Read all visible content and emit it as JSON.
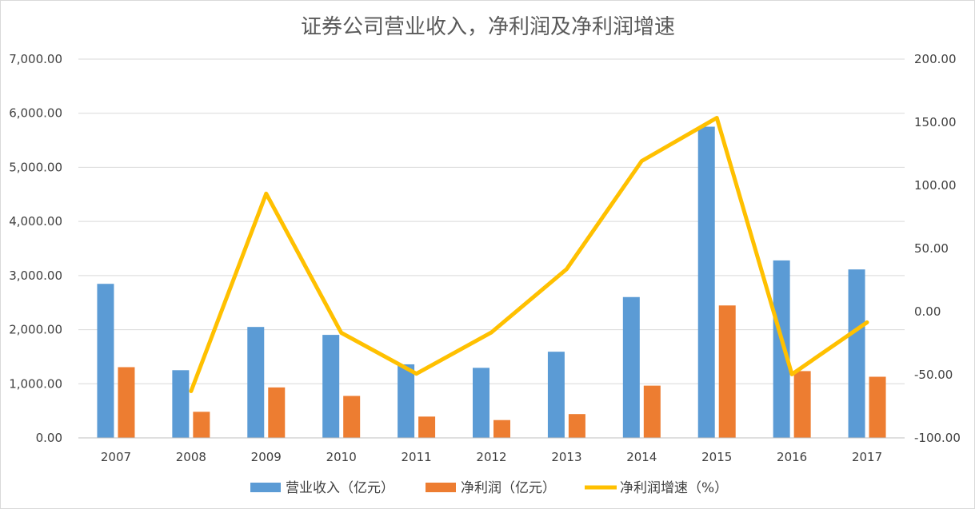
{
  "chart_data": {
    "type": "bar",
    "title": "证券公司营业收入，净利润及净利润增速",
    "categories": [
      "2007",
      "2008",
      "2009",
      "2010",
      "2011",
      "2012",
      "2013",
      "2014",
      "2015",
      "2016",
      "2017"
    ],
    "series": [
      {
        "name": "营业收入（亿元）",
        "type": "bar",
        "axis": "left",
        "color": "#5b9bd5",
        "values": [
          2847.0,
          1251.0,
          2050.0,
          1903.7,
          1359.5,
          1294.7,
          1592.4,
          2602.8,
          5751.6,
          3279.9,
          3113.3
        ]
      },
      {
        "name": "净利润（亿元）",
        "type": "bar",
        "axis": "left",
        "color": "#ed7d31",
        "values": [
          1307.0,
          482.0,
          932.7,
          775.6,
          393.8,
          329.3,
          440.2,
          965.5,
          2447.6,
          1234.5,
          1129.9
        ]
      },
      {
        "name": "净利润增速（%）",
        "type": "line",
        "axis": "right",
        "color": "#ffc000",
        "values": [
          null,
          -63.0,
          93.5,
          -16.8,
          -49.2,
          -16.4,
          33.7,
          119.3,
          153.5,
          -49.6,
          -8.5
        ]
      }
    ],
    "left_axis": {
      "ylim": [
        0,
        7000
      ],
      "ticks": [
        0,
        1000,
        2000,
        3000,
        4000,
        5000,
        6000,
        7000
      ],
      "tick_labels": [
        "0.00",
        "1,000.00",
        "2,000.00",
        "3,000.00",
        "4,000.00",
        "5,000.00",
        "6,000.00",
        "7,000.00"
      ]
    },
    "right_axis": {
      "ylim": [
        -100,
        200
      ],
      "ticks": [
        -100,
        -50,
        0,
        50,
        100,
        150,
        200
      ],
      "tick_labels": [
        "-100.00",
        "-50.00",
        "0.00",
        "50.00",
        "100.00",
        "150.00",
        "200.00"
      ]
    },
    "grid": true,
    "legend_position": "bottom"
  }
}
